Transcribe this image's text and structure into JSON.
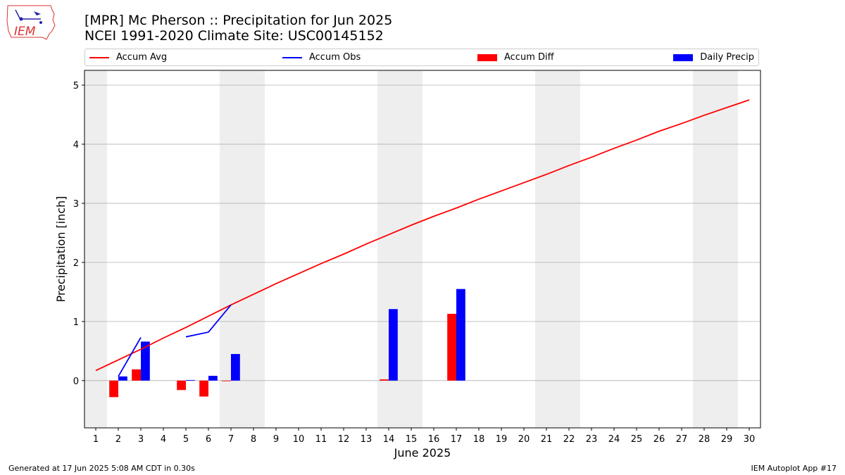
{
  "logo": {
    "text": "IEM"
  },
  "header": {
    "title_line1": "[MPR] Mc Pherson :: Precipitation for Jun 2025",
    "title_line2": "NCEI 1991-2020 Climate Site: USC00145152"
  },
  "footer": {
    "left": "Generated at 17 Jun 2025 5:08 AM CDT in 0.30s",
    "right": "IEM Autoplot App #17"
  },
  "chart_data": {
    "type": "bar",
    "title": "[MPR] Mc Pherson :: Precipitation for Jun 2025",
    "subtitle": "NCEI 1991-2020 Climate Site: USC00145152",
    "xlabel": "June 2025",
    "ylabel": "Precipitation [inch]",
    "xlim": [
      0.5,
      30.5
    ],
    "ylim": [
      -0.8,
      5.25
    ],
    "x_ticks": [
      1,
      2,
      3,
      4,
      5,
      6,
      7,
      8,
      9,
      10,
      11,
      12,
      13,
      14,
      15,
      16,
      17,
      18,
      19,
      20,
      21,
      22,
      23,
      24,
      25,
      26,
      27,
      28,
      29,
      30
    ],
    "y_ticks": [
      0,
      1,
      2,
      3,
      4,
      5
    ],
    "grid": "horizontal",
    "legend_position": "top",
    "weekend_shading": [
      [
        0.5,
        1.5
      ],
      [
        6.5,
        8.5
      ],
      [
        13.5,
        15.5
      ],
      [
        20.5,
        22.5
      ],
      [
        27.5,
        29.5
      ]
    ],
    "colors": {
      "accum_avg": "#ff0000",
      "accum_obs": "#0000ff",
      "accum_diff": "#ff0000",
      "daily_precip": "#0000ff",
      "weekend": "#eeeeee",
      "grid": "#b0b0b0"
    },
    "series": [
      {
        "name": "Accum Avg",
        "kind": "line",
        "x": [
          1,
          2,
          3,
          4,
          5,
          6,
          7,
          8,
          9,
          10,
          11,
          12,
          13,
          14,
          15,
          16,
          17,
          18,
          19,
          20,
          21,
          22,
          23,
          24,
          25,
          26,
          27,
          28,
          29,
          30
        ],
        "values": [
          0.17,
          0.35,
          0.53,
          0.72,
          0.9,
          1.09,
          1.28,
          1.46,
          1.64,
          1.81,
          1.98,
          2.14,
          2.31,
          2.47,
          2.63,
          2.78,
          2.92,
          3.07,
          3.21,
          3.35,
          3.49,
          3.64,
          3.78,
          3.93,
          4.07,
          4.22,
          4.35,
          4.49,
          4.62,
          4.75
        ]
      },
      {
        "name": "Accum Obs",
        "kind": "line",
        "segments": [
          {
            "x": [
              2,
              3
            ],
            "values": [
              0.07,
              0.73
            ]
          },
          {
            "x": [
              5,
              6,
              7
            ],
            "values": [
              0.74,
              0.82,
              1.28
            ]
          }
        ]
      },
      {
        "name": "Accum Diff",
        "kind": "bar",
        "x": [
          2,
          3,
          5,
          6,
          7,
          14,
          17
        ],
        "values": [
          -0.28,
          0.19,
          -0.16,
          -0.27,
          -0.01,
          0.02,
          1.13
        ]
      },
      {
        "name": "Daily Precip",
        "kind": "bar",
        "x": [
          2,
          3,
          5,
          6,
          7,
          14,
          17
        ],
        "values": [
          0.07,
          0.66,
          0.01,
          0.08,
          0.45,
          1.21,
          1.55
        ]
      }
    ]
  }
}
